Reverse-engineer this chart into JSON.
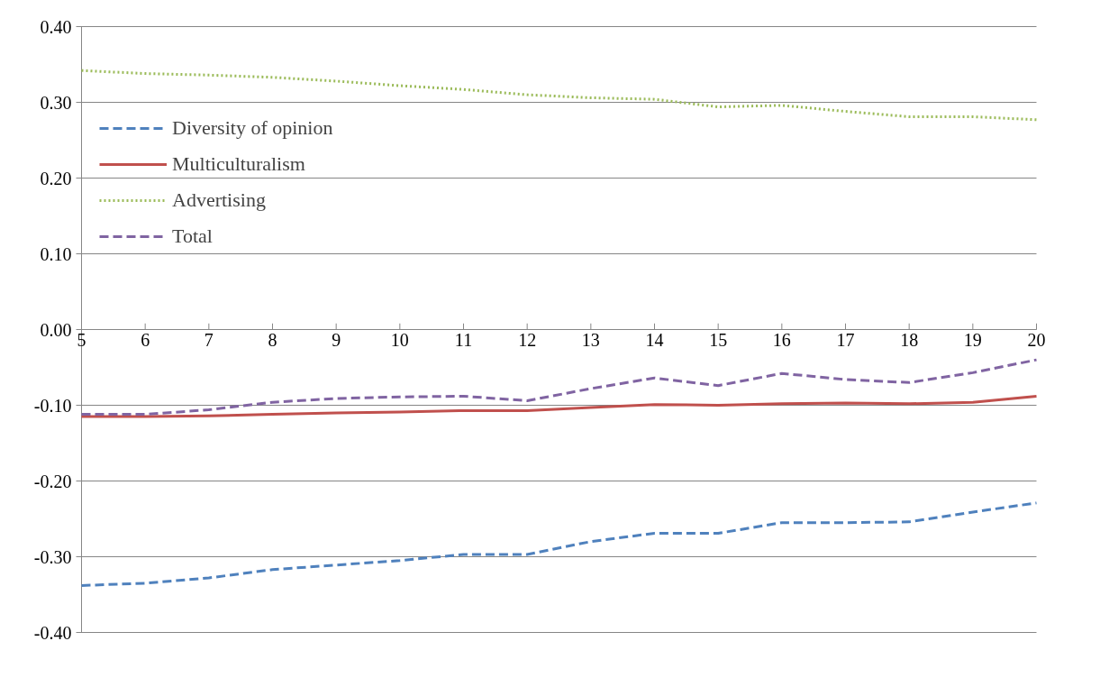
{
  "chart_data": {
    "type": "line",
    "x": [
      5,
      6,
      7,
      8,
      9,
      10,
      11,
      12,
      13,
      14,
      15,
      16,
      17,
      18,
      19,
      20
    ],
    "xlim": [
      5,
      20
    ],
    "xticks": [
      5,
      6,
      7,
      8,
      9,
      10,
      11,
      12,
      13,
      14,
      15,
      16,
      17,
      18,
      19,
      20
    ],
    "ylim": [
      -0.4,
      0.4
    ],
    "yticks": [
      {
        "value": -0.4,
        "label": "-0.40"
      },
      {
        "value": -0.3,
        "label": "-0.30"
      },
      {
        "value": -0.2,
        "label": "-0.20"
      },
      {
        "value": -0.1,
        "label": "-0.10"
      },
      {
        "value": 0,
        "label": "0.00"
      },
      {
        "value": 0.1,
        "label": "0.10"
      },
      {
        "value": 0.2,
        "label": "0.20"
      },
      {
        "value": 0.3,
        "label": "0.30"
      },
      {
        "value": 0.4,
        "label": "0.40"
      }
    ],
    "grid": "y",
    "legend": "left",
    "marker": "none",
    "series": [
      {
        "name": "Diversity of opinion",
        "color": "#4f81bd",
        "line_style": "dashed",
        "values": [
          -0.338,
          -0.335,
          -0.328,
          -0.317,
          -0.311,
          -0.305,
          -0.297,
          -0.297,
          -0.28,
          -0.269,
          -0.269,
          -0.255,
          -0.255,
          -0.254,
          -0.241,
          -0.229
        ]
      },
      {
        "name": "Multiculturalism",
        "color": "#c0504d",
        "line_style": "solid",
        "values": [
          -0.115,
          -0.115,
          -0.114,
          -0.112,
          -0.11,
          -0.109,
          -0.107,
          -0.107,
          -0.103,
          -0.099,
          -0.1,
          -0.098,
          -0.097,
          -0.098,
          -0.096,
          -0.088
        ]
      },
      {
        "name": "Advertising",
        "color": "#9bbb59",
        "line_style": "dotted",
        "values": [
          0.342,
          0.338,
          0.336,
          0.333,
          0.328,
          0.322,
          0.317,
          0.31,
          0.306,
          0.304,
          0.294,
          0.296,
          0.288,
          0.281,
          0.281,
          0.277
        ]
      },
      {
        "name": "Total",
        "color": "#8064a2",
        "line_style": "dashed",
        "values": [
          -0.112,
          -0.112,
          -0.106,
          -0.096,
          -0.091,
          -0.089,
          -0.088,
          -0.094,
          -0.078,
          -0.064,
          -0.074,
          -0.058,
          -0.066,
          -0.07,
          -0.057,
          -0.04
        ]
      }
    ]
  }
}
